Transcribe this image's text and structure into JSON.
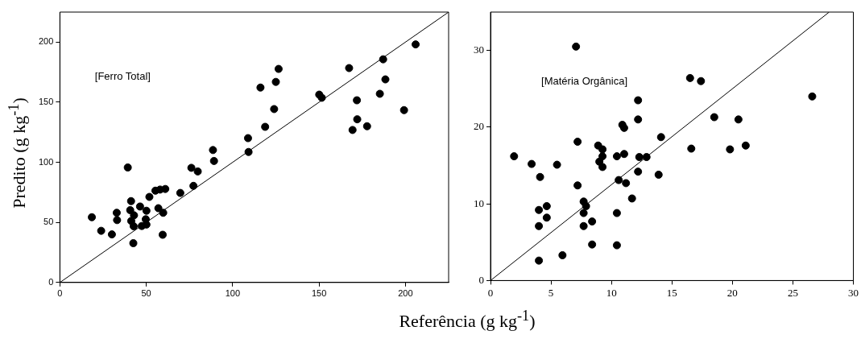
{
  "chart_data": [
    {
      "type": "scatter",
      "ylabel": "Predito (g kg$^{-1}$)",
      "xlabel": "Referência (g kg$^{-1}$)",
      "annotations": [
        "[Ferro Total]"
      ],
      "xlim": [
        0,
        225
      ],
      "ylim": [
        0,
        225
      ],
      "xticks": [
        0,
        50,
        100,
        150,
        200
      ],
      "yticks": [
        0,
        50,
        100,
        150,
        200
      ],
      "grid": false,
      "legend": false,
      "series": [
        {
          "type": "scatter",
          "marker": "circle",
          "color": "#000000",
          "x": [
            18.5,
            23.9,
            30.1,
            32.9,
            33.1,
            39.3,
            41.2,
            40.7,
            41.3,
            42.9,
            42.7,
            42.5,
            46.4,
            47.4,
            50.1,
            49.7,
            50.1,
            51.8,
            55.3,
            58.0,
            61.0,
            57.0,
            59.8,
            59.5,
            69.7,
            77.3,
            76.1,
            79.8,
            88.6,
            89.2,
            108.9,
            109.2,
            116.1,
            118.8,
            124.0,
            125.0,
            126.6,
            150.1,
            151.6,
            167.4,
            169.4,
            171.9,
            172.1,
            177.8,
            185.2,
            187.1,
            188.4,
            199.2,
            205.9
          ],
          "values": [
            54.3,
            43.0,
            40.0,
            58.0,
            51.9,
            95.7,
            67.7,
            60.2,
            51.2,
            55.9,
            46.8,
            32.7,
            63.2,
            47.0,
            59.7,
            52.6,
            48.2,
            71.2,
            76.4,
            77.3,
            77.8,
            61.8,
            58.0,
            39.7,
            74.5,
            80.4,
            95.4,
            92.4,
            110.2,
            101.1,
            120.1,
            108.6,
            162.2,
            129.5,
            144.3,
            166.9,
            177.7,
            156.3,
            153.7,
            178.4,
            126.9,
            151.6,
            135.8,
            130.0,
            157.0,
            185.7,
            169.0,
            143.4,
            198.1
          ]
        },
        {
          "type": "line",
          "marker": "none",
          "color": "#000000",
          "x": [
            0,
            225
          ],
          "values": [
            0,
            225
          ]
        }
      ]
    },
    {
      "type": "scatter",
      "annotations": [
        "[Matéria Orgânica]"
      ],
      "xlim": [
        0,
        30
      ],
      "ylim": [
        0,
        35
      ],
      "xticks": [
        0,
        5,
        10,
        15,
        20,
        25,
        30
      ],
      "yticks": [
        0,
        10,
        20,
        30
      ],
      "grid": false,
      "legend": false,
      "series": [
        {
          "type": "scatter",
          "marker": "circle",
          "color": "#000000",
          "x": [
            1.95,
            3.4,
            4.1,
            5.5,
            4.0,
            4.65,
            4.65,
            4.0,
            4.0,
            5.95,
            7.07,
            7.2,
            7.2,
            7.7,
            7.9,
            7.75,
            7.7,
            7.7,
            8.4,
            8.4,
            8.9,
            9.26,
            9.26,
            9.0,
            9.26,
            10.45,
            10.6,
            10.45,
            10.45,
            10.9,
            11.05,
            11.05,
            11.2,
            11.7,
            12.2,
            12.2,
            12.3,
            12.9,
            12.2,
            13.9,
            14.1,
            16.5,
            17.4,
            16.6,
            18.5,
            19.8,
            20.5,
            21.1,
            26.6
          ],
          "values": [
            16.2,
            15.2,
            13.5,
            15.1,
            9.2,
            9.7,
            8.2,
            7.1,
            2.6,
            3.3,
            30.5,
            18.1,
            12.4,
            10.3,
            9.7,
            null,
            8.8,
            7.1,
            7.7,
            4.7,
            17.6,
            17.1,
            16.2,
            15.5,
            14.8,
            16.2,
            13.1,
            8.8,
            4.6,
            20.3,
            19.9,
            16.5,
            12.7,
            10.7,
            23.5,
            21.0,
            16.1,
            16.1,
            14.2,
            13.8,
            18.7,
            26.4,
            26.0,
            17.2,
            21.3,
            17.1,
            21.0,
            17.6,
            24.0
          ]
        },
        {
          "type": "line",
          "marker": "none",
          "color": "#000000",
          "x": [
            0,
            28
          ],
          "values": [
            0,
            35
          ]
        }
      ]
    }
  ]
}
